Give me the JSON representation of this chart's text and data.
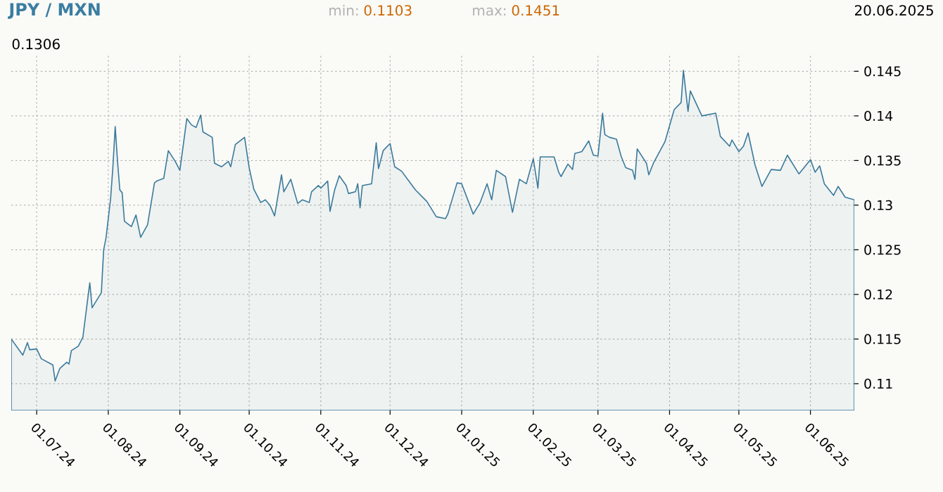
{
  "chart_data": {
    "type": "area",
    "title": "JPY / MXN",
    "annotations": [
      "min:",
      "0.1103",
      "max:",
      "0.1451",
      "20.06.2025",
      "0.1306"
    ],
    "x": [
      "2024-06-20",
      "2024-06-25",
      "2024-06-27",
      "2024-06-28",
      "2024-07-01",
      "2024-07-03",
      "2024-07-08",
      "2024-07-09",
      "2024-07-11",
      "2024-07-14",
      "2024-07-15",
      "2024-07-16",
      "2024-07-19",
      "2024-07-21",
      "2024-07-23",
      "2024-07-24",
      "2024-07-25",
      "2024-07-29",
      "2024-07-30",
      "2024-07-31",
      "2024-08-02",
      "2024-08-03",
      "2024-08-04",
      "2024-08-05",
      "2024-08-06",
      "2024-08-07",
      "2024-08-08",
      "2024-08-11",
      "2024-08-13",
      "2024-08-15",
      "2024-08-18",
      "2024-08-21",
      "2024-08-22",
      "2024-08-25",
      "2024-08-27",
      "2024-08-30",
      "2024-09-01",
      "2024-09-04",
      "2024-09-06",
      "2024-09-08",
      "2024-09-10",
      "2024-09-11",
      "2024-09-15",
      "2024-09-16",
      "2024-09-19",
      "2024-09-22",
      "2024-09-23",
      "2024-09-25",
      "2024-09-29",
      "2024-10-01",
      "2024-10-03",
      "2024-10-06",
      "2024-10-08",
      "2024-10-10",
      "2024-10-12",
      "2024-10-15",
      "2024-10-16",
      "2024-10-19",
      "2024-10-22",
      "2024-10-24",
      "2024-10-27",
      "2024-10-28",
      "2024-10-31",
      "2024-11-01",
      "2024-11-04",
      "2024-11-05",
      "2024-11-07",
      "2024-11-09",
      "2024-11-12",
      "2024-11-13",
      "2024-11-16",
      "2024-11-17",
      "2024-11-18",
      "2024-11-19",
      "2024-11-23",
      "2024-11-25",
      "2024-11-26",
      "2024-11-28",
      "2024-12-01",
      "2024-12-03",
      "2024-12-06",
      "2024-12-12",
      "2024-12-17",
      "2024-12-21",
      "2024-12-25",
      "2024-12-26",
      "2024-12-30",
      "2025-01-01",
      "2025-01-06",
      "2025-01-09",
      "2025-01-12",
      "2025-01-14",
      "2025-01-16",
      "2025-01-20",
      "2025-01-23",
      "2025-01-26",
      "2025-01-29",
      "2025-02-01",
      "2025-02-03",
      "2025-02-04",
      "2025-02-10",
      "2025-02-12",
      "2025-02-13",
      "2025-02-16",
      "2025-02-18",
      "2025-02-19",
      "2025-02-22",
      "2025-02-25",
      "2025-02-27",
      "2025-03-01",
      "2025-03-03",
      "2025-03-04",
      "2025-03-06",
      "2025-03-09",
      "2025-03-11",
      "2025-03-13",
      "2025-03-16",
      "2025-03-17",
      "2025-03-18",
      "2025-03-22",
      "2025-03-23",
      "2025-03-25",
      "2025-03-30",
      "2025-04-03",
      "2025-04-06",
      "2025-04-07",
      "2025-04-09",
      "2025-04-10",
      "2025-04-15",
      "2025-04-21",
      "2025-04-23",
      "2025-04-27",
      "2025-04-28",
      "2025-05-01",
      "2025-05-03",
      "2025-05-05",
      "2025-05-08",
      "2025-05-11",
      "2025-05-15",
      "2025-05-19",
      "2025-05-22",
      "2025-05-27",
      "2025-06-01",
      "2025-06-03",
      "2025-06-05",
      "2025-06-07",
      "2025-06-11",
      "2025-06-13",
      "2025-06-16",
      "2025-06-20"
    ],
    "series": [
      {
        "color": "#3a7a9c",
        "values": [
          0.115,
          0.1132,
          0.1146,
          0.1138,
          0.1139,
          0.1128,
          0.1121,
          0.1103,
          0.1117,
          0.1124,
          0.1122,
          0.1137,
          0.1142,
          0.1152,
          0.1193,
          0.1213,
          0.1185,
          0.1202,
          0.125,
          0.1263,
          0.1307,
          0.1343,
          0.1388,
          0.1349,
          0.1317,
          0.1314,
          0.1282,
          0.1276,
          0.1289,
          0.1264,
          0.1278,
          0.1325,
          0.1327,
          0.133,
          0.1361,
          0.1349,
          0.1339,
          0.1397,
          0.139,
          0.1387,
          0.1401,
          0.1382,
          0.1376,
          0.1347,
          0.1343,
          0.1349,
          0.1343,
          0.1368,
          0.1376,
          0.1342,
          0.1318,
          0.1303,
          0.1306,
          0.13,
          0.1288,
          0.1334,
          0.1315,
          0.1329,
          0.1302,
          0.1306,
          0.1303,
          0.1315,
          0.1322,
          0.1319,
          0.1327,
          0.1293,
          0.1317,
          0.1333,
          0.1322,
          0.1313,
          0.1315,
          0.1324,
          0.1297,
          0.1322,
          0.1324,
          0.137,
          0.1341,
          0.1361,
          0.1369,
          0.1343,
          0.1338,
          0.1317,
          0.1304,
          0.1287,
          0.1285,
          0.129,
          0.1325,
          0.1324,
          0.129,
          0.1303,
          0.1324,
          0.1306,
          0.1339,
          0.1332,
          0.1292,
          0.1329,
          0.1324,
          0.1352,
          0.1319,
          0.1354,
          0.1354,
          0.1337,
          0.1332,
          0.1346,
          0.134,
          0.1358,
          0.136,
          0.1372,
          0.1356,
          0.1355,
          0.1403,
          0.1379,
          0.1376,
          0.1374,
          0.1355,
          0.1342,
          0.1339,
          0.1329,
          0.1363,
          0.1347,
          0.1334,
          0.1347,
          0.1371,
          0.1407,
          0.1415,
          0.1451,
          0.1405,
          0.1428,
          0.14,
          0.1403,
          0.1377,
          0.1366,
          0.1373,
          0.136,
          0.1366,
          0.1381,
          0.1345,
          0.1321,
          0.134,
          0.1339,
          0.1356,
          0.1335,
          0.1351,
          0.1337,
          0.1344,
          0.1324,
          0.1311,
          0.1321,
          0.1309,
          0.1306
        ]
      }
    ],
    "xlim": [
      "2024-06-20",
      "2025-06-20"
    ],
    "xticks": [
      {
        "value": "2024-07-01",
        "label": "01.07.24"
      },
      {
        "value": "2024-08-01",
        "label": "01.08.24"
      },
      {
        "value": "2024-09-01",
        "label": "01.09.24"
      },
      {
        "value": "2024-10-01",
        "label": "01.10.24"
      },
      {
        "value": "2024-11-01",
        "label": "01.11.24"
      },
      {
        "value": "2024-12-01",
        "label": "01.12.24"
      },
      {
        "value": "2025-01-01",
        "label": "01.01.25"
      },
      {
        "value": "2025-02-01",
        "label": "01.02.25"
      },
      {
        "value": "2025-03-01",
        "label": "01.03.25"
      },
      {
        "value": "2025-04-01",
        "label": "01.04.25"
      },
      {
        "value": "2025-05-01",
        "label": "01.05.25"
      },
      {
        "value": "2025-06-01",
        "label": "01.06.25"
      }
    ],
    "ylim": [
      0.107,
      0.147
    ],
    "yticks": [
      0.11,
      0.115,
      0.12,
      0.125,
      0.13,
      0.135,
      0.14,
      0.145
    ],
    "grid": true
  }
}
